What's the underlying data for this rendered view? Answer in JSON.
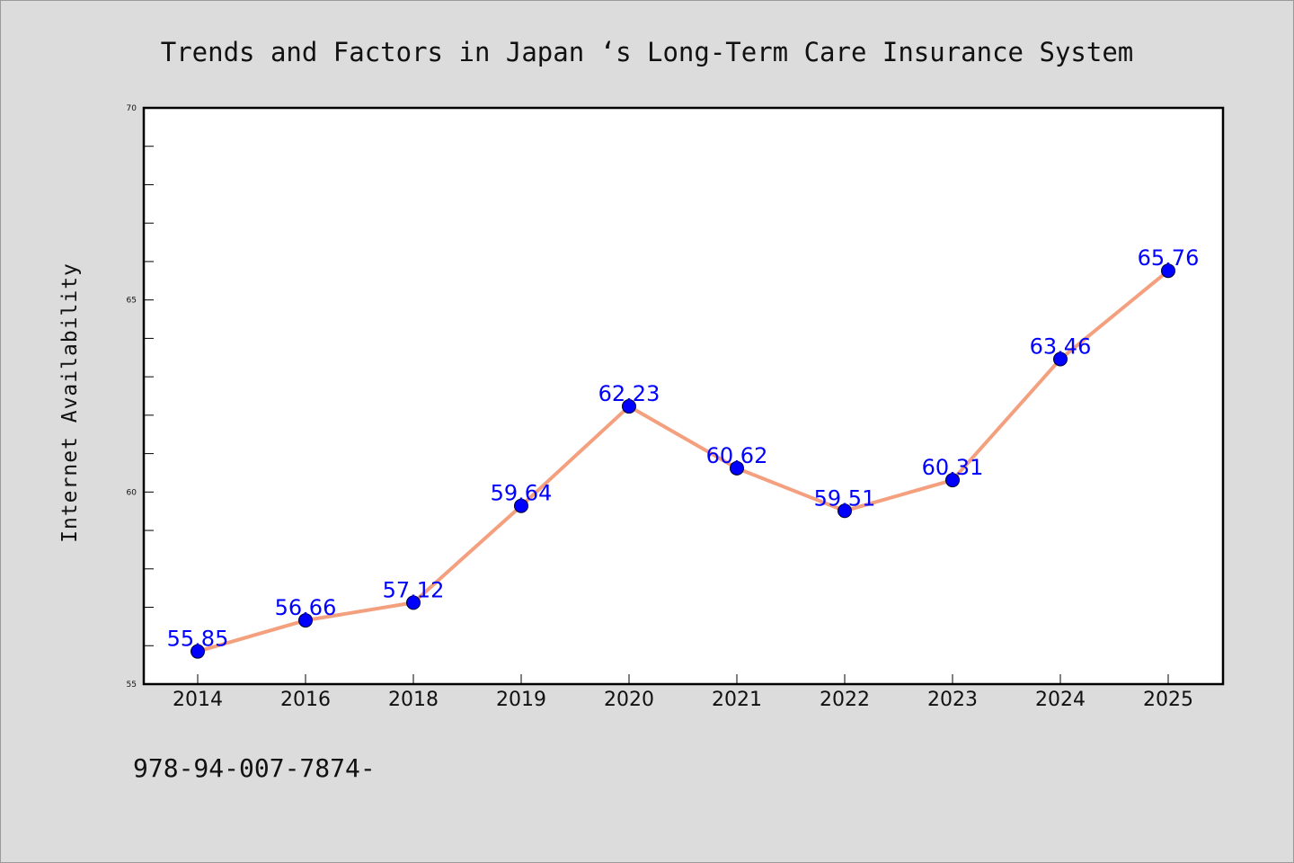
{
  "chart_data": {
    "type": "line",
    "title": "Trends and Factors in Japan ‘s Long-Term Care Insurance System",
    "ylabel": "Internet Availability",
    "xlabel": "",
    "categories": [
      "2014",
      "2016",
      "2018",
      "2019",
      "2020",
      "2021",
      "2022",
      "2023",
      "2024",
      "2025"
    ],
    "series": [
      {
        "values": [
          55.85,
          56.66,
          57.12,
          59.64,
          62.23,
          60.62,
          59.51,
          60.31,
          63.46,
          65.76
        ],
        "labels": [
          "55.85",
          "56.66",
          "57.12",
          "59.64",
          "62.23",
          "60.62",
          "59.51",
          "60.31",
          "63.46",
          "65.76"
        ],
        "line_color": "#f4a07e",
        "marker_color": "#0000ff"
      }
    ],
    "ylim": [
      55,
      70
    ],
    "yticks_major": [
      "55",
      "60",
      "65",
      "70"
    ],
    "grid": false,
    "legend": "none"
  },
  "footnote": "978-94-007-7874-",
  "colors": {
    "background": "#dcdcdc",
    "plot_background": "#ffffff",
    "axis": "#000000"
  }
}
